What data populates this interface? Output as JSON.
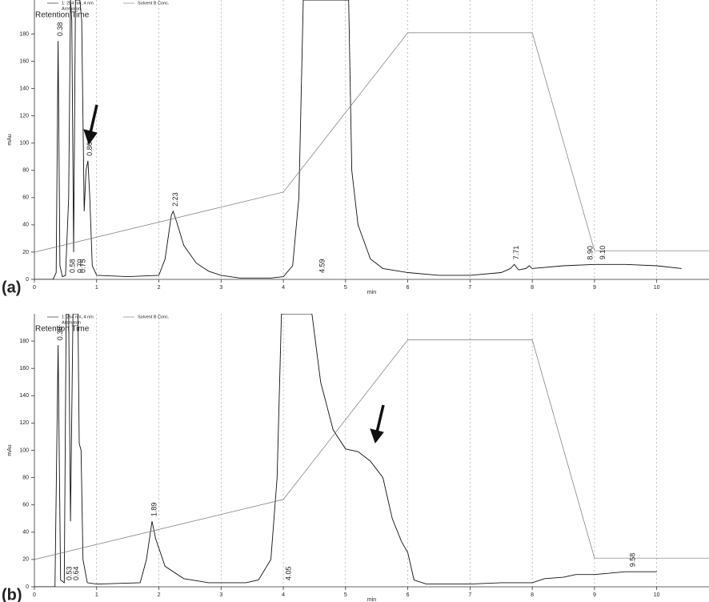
{
  "chart_data": [
    {
      "type": "line",
      "panel_label": "(a)",
      "annotation": "Retention Time",
      "x_label": "min",
      "y_label": "mAu",
      "xlim": [
        0,
        10.84
      ],
      "ylim": [
        0,
        205
      ],
      "xticks": [
        0,
        1,
        2,
        3,
        4,
        5,
        6,
        7,
        8,
        9,
        10
      ],
      "yticks": [
        0,
        20,
        40,
        60,
        80,
        100,
        120,
        140,
        160,
        180
      ],
      "grid": true,
      "series": [
        {
          "name": "1: 254 nm, 4 nm",
          "sample": "Aromatan",
          "color": "#111111",
          "x": [
            0,
            0.3,
            0.35,
            0.38,
            0.41,
            0.45,
            0.5,
            0.55,
            0.58,
            0.6,
            0.63,
            0.66,
            0.7,
            0.73,
            0.76,
            0.8,
            0.83,
            0.86,
            0.89,
            0.93,
            1.0,
            1.5,
            2.0,
            2.1,
            2.2,
            2.23,
            2.3,
            2.4,
            2.6,
            2.8,
            3.0,
            3.3,
            3.5,
            3.8,
            4.0,
            4.15,
            4.25,
            4.32,
            5.05,
            5.1,
            5.2,
            5.4,
            5.6,
            6.0,
            6.5,
            7.0,
            7.5,
            7.65,
            7.71,
            7.78,
            7.9,
            7.95,
            8.0,
            8.5,
            9.0,
            9.5,
            10.0,
            10.4
          ],
          "values": [
            0,
            0,
            5,
            175,
            10,
            2,
            3,
            60,
            205,
            190,
            20,
            205,
            205,
            205,
            190,
            50,
            80,
            87,
            60,
            10,
            3,
            2,
            3,
            15,
            47,
            50,
            40,
            25,
            12,
            6,
            3,
            1,
            1,
            1,
            2,
            10,
            60,
            205,
            205,
            80,
            40,
            15,
            8,
            5,
            3,
            3,
            5,
            8,
            11,
            7,
            8,
            10,
            8,
            10,
            11,
            11,
            10,
            8
          ]
        },
        {
          "name": "Solvent B Conc.",
          "color": "#777777",
          "x": [
            0,
            4,
            6,
            8,
            9,
            10.84
          ],
          "values": [
            20,
            64,
            181,
            181,
            21,
            21
          ]
        }
      ],
      "peak_labels": [
        {
          "value": 0.38,
          "label": "0.38"
        },
        {
          "value": 0.58,
          "label": "0.58"
        },
        {
          "value": 0.7,
          "label": "0.70"
        },
        {
          "value": 0.75,
          "label": "0.75"
        },
        0.86,
        2.23,
        4.59,
        7.71,
        {
          "value": 8.9,
          "label": "8.90"
        },
        {
          "value": 9.1,
          "label": "9.10"
        }
      ]
    },
    {
      "type": "line",
      "panel_label": "(b)",
      "annotation": "Retention Time",
      "x_label": "min",
      "y_label": "mAu",
      "xlim": [
        0,
        10.84
      ],
      "ylim": [
        0,
        200
      ],
      "xticks": [
        0,
        1,
        2,
        3,
        4,
        5,
        6,
        7,
        8,
        9,
        10
      ],
      "yticks": [
        0,
        20,
        40,
        60,
        80,
        100,
        120,
        140,
        160,
        180
      ],
      "grid": true,
      "series": [
        {
          "name": "1: 254 nm, 4 nm",
          "sample": "Aromatan",
          "color": "#111111",
          "x": [
            0,
            0.33,
            0.38,
            0.42,
            0.48,
            0.51,
            0.55,
            0.58,
            0.62,
            0.65,
            0.7,
            0.72,
            0.75,
            0.78,
            0.85,
            1.0,
            1.7,
            1.8,
            1.89,
            1.95,
            2.1,
            2.4,
            2.8,
            3.4,
            3.6,
            3.8,
            3.9,
            3.97,
            4.46,
            4.6,
            4.8,
            5.0,
            5.2,
            5.4,
            5.6,
            5.75,
            5.9,
            6.0,
            6.1,
            6.3,
            7.0,
            7.5,
            8.0,
            8.2,
            8.5,
            8.7,
            9.0,
            9.5,
            10.0
          ],
          "values": [
            0,
            0,
            177,
            5,
            3,
            200,
            200,
            48,
            200,
            200,
            200,
            105,
            100,
            20,
            3,
            2,
            3,
            20,
            48,
            35,
            15,
            6,
            3,
            3,
            5,
            20,
            80,
            200,
            200,
            150,
            115,
            101,
            99,
            92,
            80,
            50,
            33,
            25,
            5,
            2,
            2,
            3,
            3,
            6,
            7,
            9,
            9,
            11,
            11
          ]
        },
        {
          "name": "Solvent B Conc.",
          "color": "#777777",
          "x": [
            0,
            4,
            6,
            8,
            9,
            10.84
          ],
          "values": [
            20,
            64,
            181,
            181,
            21,
            21
          ]
        }
      ],
      "peak_labels": [
        {
          "value": 0.38,
          "label": "0.38"
        },
        0.53,
        0.64,
        1.89,
        4.05,
        9.58
      ]
    }
  ]
}
